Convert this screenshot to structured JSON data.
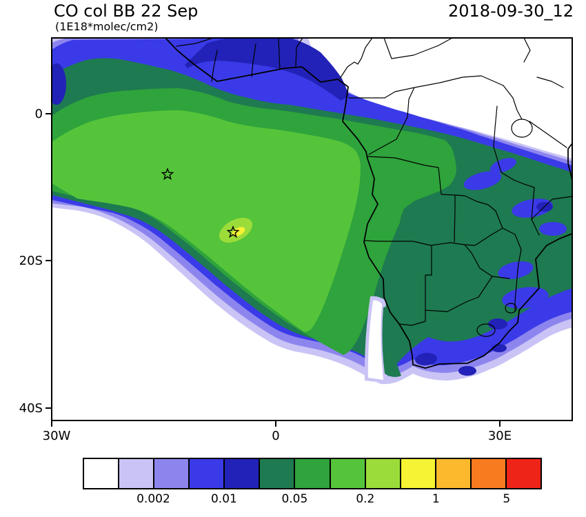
{
  "header": {
    "title": "CO col BB 22 Sep",
    "units_label": "(1E18*molec/cm2)",
    "timestamp": "2018-09-30_12"
  },
  "chart_data": {
    "type": "heatmap",
    "subtype": "filled-contour-geographic-map",
    "title": "CO col BB 22 Sep",
    "units": "1E18*molec/cm2",
    "valid_time": "2018-09-30_12",
    "region": {
      "lon_range_deg": [
        -30,
        40
      ],
      "lat_range_deg": [
        -42,
        10
      ],
      "area": "South Atlantic and southern Africa"
    },
    "x_tick_labels": [
      "30W",
      "0",
      "30E"
    ],
    "y_tick_labels": [
      "0",
      "20S",
      "40S"
    ],
    "colorbar": {
      "boundary_labels": [
        "0.002",
        "0.01",
        "0.05",
        "0.2",
        "1",
        "5"
      ],
      "labeled_boundary_cells": [
        2,
        4,
        6,
        8,
        10,
        12
      ],
      "colors": [
        "#ffffff",
        "#c9c4f5",
        "#8d85ee",
        "#3a3ae8",
        "#2222b8",
        "#1e7a50",
        "#2fa33c",
        "#55c43a",
        "#9cdc3a",
        "#f5f333",
        "#fdb92d",
        "#f97b20",
        "#ee2418"
      ]
    },
    "markers": [
      {
        "type": "star-outline",
        "approx_lon": -14.4,
        "approx_lat": -7.9
      },
      {
        "type": "star-outline",
        "approx_lon": -5.7,
        "approx_lat": -16.0
      }
    ],
    "field_summary": "Biomass-burning CO column plume: maximum (~0.5-1) over the SE Atlantic near 6W,16S, green core 0.2-0.5 sweeping NW-SE offshore Angola/Namibia, 0.01-0.2 band over Gulf of Guinea coast, Congo basin, East/Southern Africa; clean air (<0.002) over Sahel NE corner and far SW ocean"
  }
}
